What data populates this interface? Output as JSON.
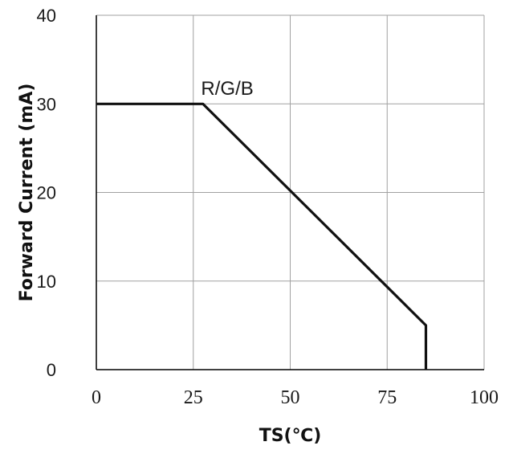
{
  "chart_data": {
    "type": "line",
    "title": "",
    "xlabel": "TS(℃)",
    "ylabel": "Forward Current (mA)",
    "xlim": [
      0,
      100
    ],
    "ylim": [
      0,
      40
    ],
    "xticks": [
      0,
      25,
      50,
      75,
      100
    ],
    "yticks": [
      0,
      10,
      20,
      30,
      40
    ],
    "grid": true,
    "legend": "none",
    "series": [
      {
        "name": "R/G/B",
        "x": [
          0,
          27.5,
          85,
          85
        ],
        "y": [
          30,
          30,
          5,
          0
        ]
      }
    ],
    "annotations": [
      {
        "text": "R/G/B",
        "x": 27,
        "y": 31
      }
    ],
    "colors": {
      "line": "#111111",
      "grid": "#a0a0a0",
      "axis": "#000000"
    }
  }
}
